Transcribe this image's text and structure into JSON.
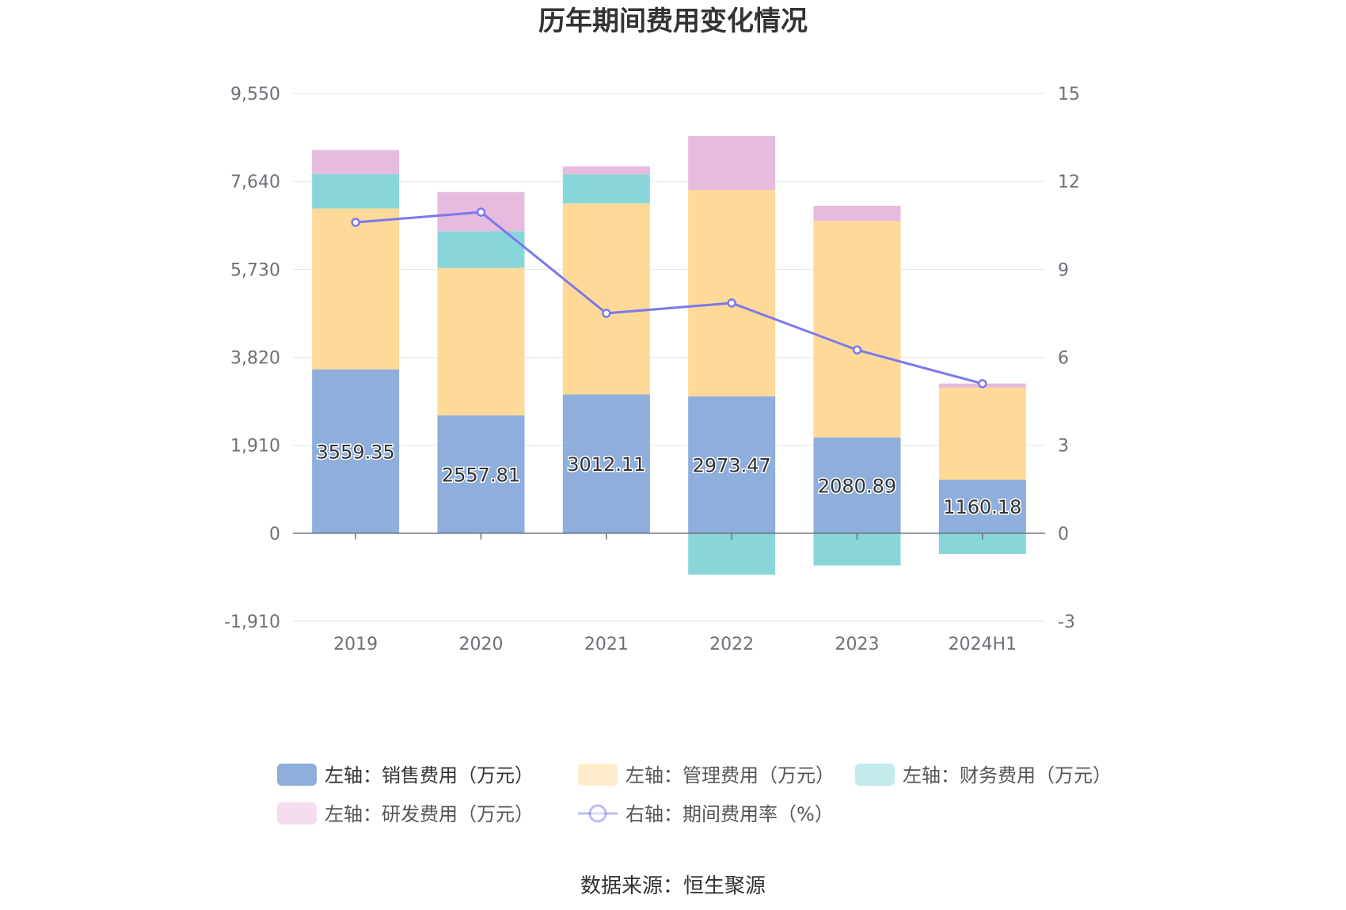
{
  "chart_data": {
    "type": "bar",
    "title": "历年期间费用变化情况",
    "categories": [
      "2019",
      "2020",
      "2021",
      "2022",
      "2023",
      "2024H1"
    ],
    "y_left": {
      "ticks": [
        "9,550",
        "7,640",
        "5,730",
        "3,820",
        "1,910",
        "0",
        "-1,910"
      ],
      "range": [
        -1910,
        9550
      ]
    },
    "y_right": {
      "ticks": [
        "15",
        "12",
        "9",
        "6",
        "3",
        "0",
        "-3"
      ],
      "range": [
        -3,
        15
      ]
    },
    "series": [
      {
        "name": "左轴：销售费用（万元）",
        "kind": "bar",
        "color": "#8eaedb",
        "values": [
          3559.35,
          2557.81,
          3012.11,
          2973.47,
          2080.89,
          1160.18
        ],
        "labels": [
          "3559.35",
          "2557.81",
          "3012.11",
          "2973.47",
          "2080.89",
          "1160.18"
        ]
      },
      {
        "name": "左轴：管理费用（万元）",
        "kind": "bar",
        "color": "#ffd998",
        "values": [
          3490,
          3200,
          4150,
          4480,
          4700,
          2000
        ]
      },
      {
        "name": "左轴：财务费用（万元）",
        "kind": "bar",
        "color": "#88d6d9",
        "values": [
          750,
          800,
          630,
          -900,
          -700,
          -450
        ]
      },
      {
        "name": "左轴：研发费用（万元）",
        "kind": "bar",
        "color": "#e7bbdd",
        "values": [
          520,
          850,
          170,
          1170,
          330,
          90
        ]
      },
      {
        "name": "右轴：期间费用率（%）",
        "kind": "line",
        "color": "#7b79ec",
        "values": [
          10.6,
          10.95,
          7.5,
          7.85,
          6.25,
          5.1
        ]
      }
    ],
    "grid": true,
    "legend_position": "bottom"
  },
  "source_text": "数据来源：恒生聚源"
}
